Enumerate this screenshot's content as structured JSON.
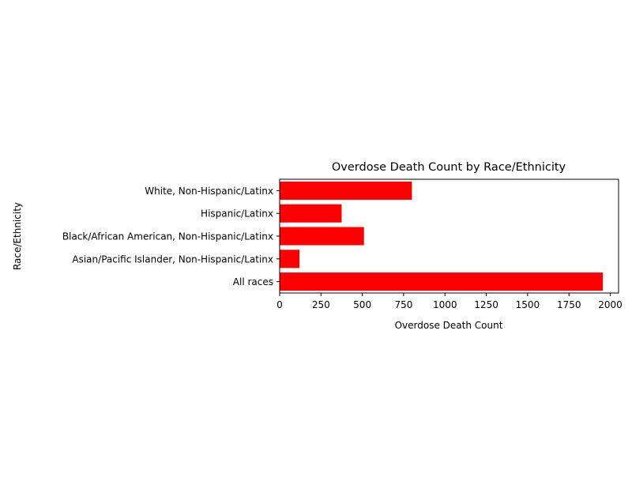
{
  "chart_data": {
    "type": "bar",
    "orientation": "horizontal",
    "title": "Overdose Death Count by Race/Ethnicity",
    "xlabel": "Overdose Death Count",
    "ylabel": "Race/Ethnicity",
    "categories": [
      "All races",
      "Asian/Pacific Islander, Non-Hispanic/Latinx",
      "Black/African American, Non-Hispanic/Latinx",
      "Hispanic/Latinx",
      "White, Non-Hispanic/Latinx"
    ],
    "values": [
      1955,
      120,
      510,
      375,
      800
    ],
    "xlim": [
      0,
      2050
    ],
    "xticks": [
      0,
      250,
      500,
      750,
      1000,
      1250,
      1500,
      1750,
      2000
    ],
    "bar_color": "#ff0000",
    "grid": false,
    "legend": "none"
  }
}
